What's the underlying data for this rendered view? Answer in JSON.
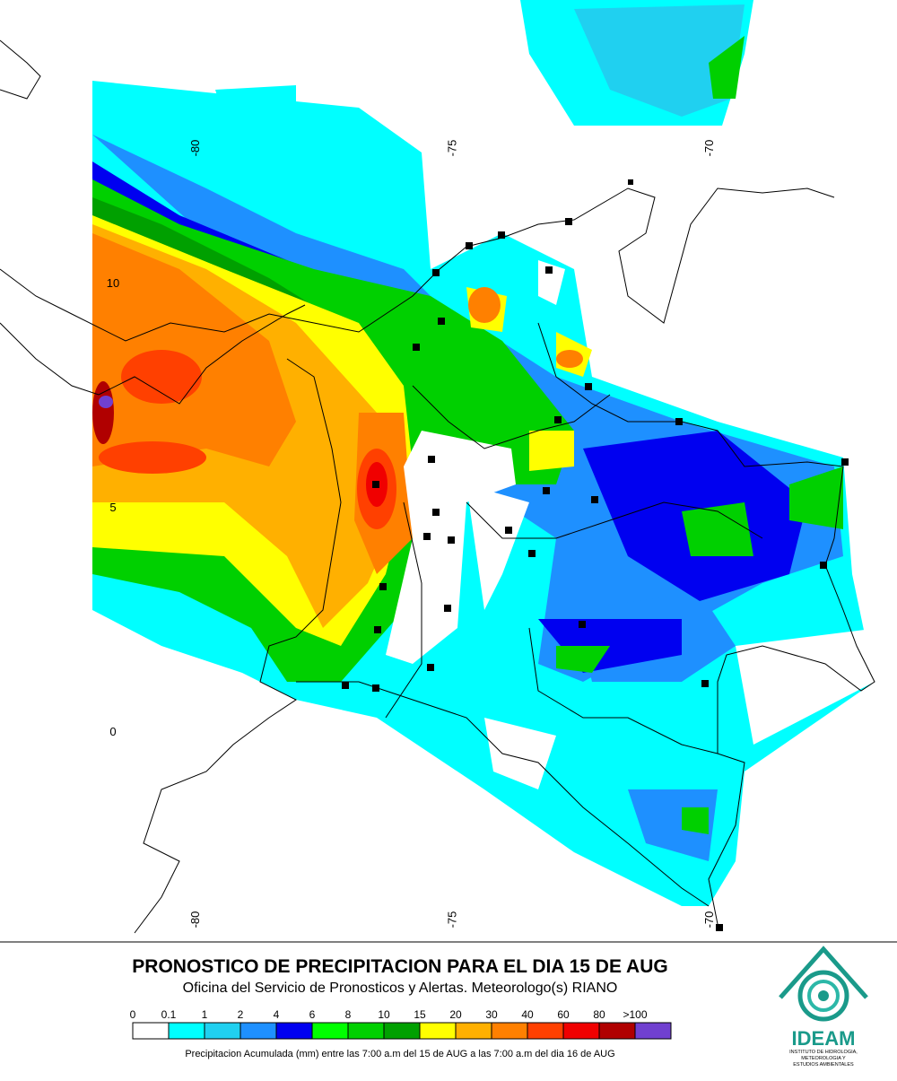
{
  "map": {
    "lon_labels": [
      -80,
      -75,
      -70
    ],
    "lat_labels": [
      10,
      5,
      0
    ]
  },
  "title": "PRONOSTICO DE PRECIPITACION PARA EL DIA 15 DE AUG",
  "subtitle": "Oficina del Servicio de Pronosticos y Alertas. Meteorologo(s) RIANO",
  "legend": {
    "items": [
      {
        "label": "0",
        "color": "#ffffff"
      },
      {
        "label": "0.1",
        "color": "#00ffff"
      },
      {
        "label": "1",
        "color": "#20d0f0"
      },
      {
        "label": "2",
        "color": "#1e90ff"
      },
      {
        "label": "4",
        "color": "#0000f0"
      },
      {
        "label": "6",
        "color": "#00ff00"
      },
      {
        "label": "8",
        "color": "#00d000"
      },
      {
        "label": "10",
        "color": "#00a000"
      },
      {
        "label": "15",
        "color": "#ffff00"
      },
      {
        "label": "20",
        "color": "#ffb000"
      },
      {
        "label": "30",
        "color": "#ff8000"
      },
      {
        "label": "40",
        "color": "#ff4000"
      },
      {
        "label": "60",
        "color": "#f00000"
      },
      {
        "label": "80",
        "color": "#b00000"
      },
      {
        "label": ">100",
        "color": "#7040d0"
      }
    ],
    "caption": "Precipitacion Acumulada (mm) entre las 7:00 a.m del 15 de AUG a las 7:00 a.m del dia 16 de AUG"
  },
  "logo": {
    "name": "IDEAM",
    "subtitle_lines": [
      "INSTITUTO DE HIDROLOGIA,",
      "METEOROLOGIA Y",
      "ESTUDIOS AMBIENTALES"
    ]
  }
}
